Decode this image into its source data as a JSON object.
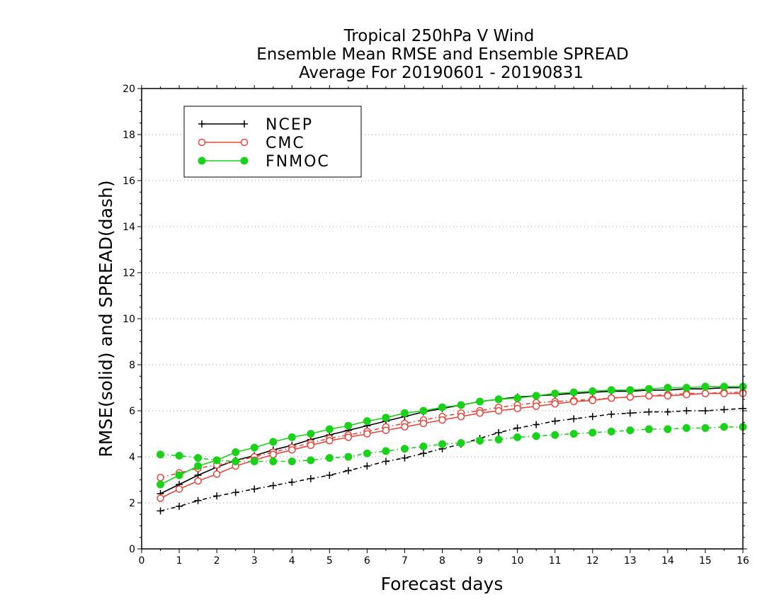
{
  "chart_data": {
    "type": "line",
    "title": [
      "Tropical 250hPa V Wind",
      "Ensemble Mean RMSE and Ensemble SPREAD",
      "Average For 20190601 - 20190831"
    ],
    "xlabel": "Forecast days",
    "ylabel": "RMSE(solid) and SPREAD(dash)",
    "xlim": [
      0,
      16
    ],
    "ylim": [
      0,
      20
    ],
    "xticks": [
      0,
      1,
      2,
      3,
      4,
      5,
      6,
      7,
      8,
      9,
      10,
      11,
      12,
      13,
      14,
      15,
      16
    ],
    "yticks": [
      0,
      2,
      4,
      6,
      8,
      10,
      12,
      14,
      16,
      18,
      20
    ],
    "grid": "horizontal-dotted",
    "legend_position": "top-left",
    "x": [
      0.5,
      1,
      1.5,
      2,
      2.5,
      3,
      3.5,
      4,
      4.5,
      5,
      5.5,
      6,
      6.5,
      7,
      7.5,
      8,
      8.5,
      9,
      9.5,
      10,
      10.5,
      11,
      11.5,
      12,
      12.5,
      13,
      13.5,
      14,
      14.5,
      15,
      15.5,
      16
    ],
    "series": [
      {
        "name": "NCEP",
        "color": "#000000",
        "marker": "plus",
        "rmse": [
          2.4,
          2.8,
          3.2,
          3.55,
          3.85,
          4.05,
          4.3,
          4.5,
          4.75,
          4.95,
          5.15,
          5.35,
          5.55,
          5.75,
          5.95,
          6.1,
          6.25,
          6.4,
          6.5,
          6.6,
          6.65,
          6.7,
          6.75,
          6.8,
          6.85,
          6.85,
          6.9,
          6.9,
          6.95,
          6.95,
          7.0,
          7.0
        ],
        "spread": [
          1.65,
          1.85,
          2.1,
          2.3,
          2.45,
          2.6,
          2.75,
          2.9,
          3.05,
          3.2,
          3.4,
          3.6,
          3.8,
          3.95,
          4.15,
          4.35,
          4.55,
          4.8,
          5.05,
          5.25,
          5.4,
          5.55,
          5.65,
          5.75,
          5.85,
          5.9,
          5.95,
          5.95,
          6.0,
          6.0,
          6.05,
          6.1
        ]
      },
      {
        "name": "CMC",
        "color": "#e8463c",
        "marker": "circle-open",
        "rmse": [
          2.2,
          2.6,
          2.95,
          3.25,
          3.6,
          3.85,
          4.1,
          4.3,
          4.5,
          4.7,
          4.85,
          5.0,
          5.15,
          5.3,
          5.45,
          5.6,
          5.75,
          5.9,
          6.0,
          6.1,
          6.2,
          6.3,
          6.4,
          6.45,
          6.55,
          6.6,
          6.65,
          6.65,
          6.7,
          6.75,
          6.75,
          6.75
        ],
        "spread": [
          3.1,
          3.3,
          3.5,
          3.65,
          3.8,
          4.0,
          4.2,
          4.4,
          4.6,
          4.8,
          4.95,
          5.1,
          5.3,
          5.45,
          5.6,
          5.75,
          5.9,
          6.0,
          6.15,
          6.25,
          6.35,
          6.4,
          6.45,
          6.5,
          6.55,
          6.6,
          6.65,
          6.7,
          6.75,
          6.75,
          6.8,
          6.8
        ]
      },
      {
        "name": "FNMOC",
        "color": "#19d219",
        "marker": "circle-filled",
        "rmse": [
          2.8,
          3.2,
          3.6,
          3.85,
          4.2,
          4.4,
          4.65,
          4.85,
          5.0,
          5.2,
          5.35,
          5.55,
          5.7,
          5.9,
          6.0,
          6.15,
          6.25,
          6.4,
          6.5,
          6.55,
          6.65,
          6.75,
          6.8,
          6.85,
          6.9,
          6.9,
          6.95,
          7.0,
          7.0,
          7.05,
          7.05,
          7.05
        ],
        "spread": [
          4.1,
          4.05,
          3.95,
          3.85,
          3.8,
          3.8,
          3.8,
          3.8,
          3.85,
          3.95,
          4.0,
          4.15,
          4.25,
          4.35,
          4.45,
          4.55,
          4.6,
          4.7,
          4.75,
          4.85,
          4.9,
          4.95,
          5.0,
          5.05,
          5.1,
          5.15,
          5.2,
          5.2,
          5.25,
          5.25,
          5.3,
          5.3
        ]
      }
    ]
  }
}
